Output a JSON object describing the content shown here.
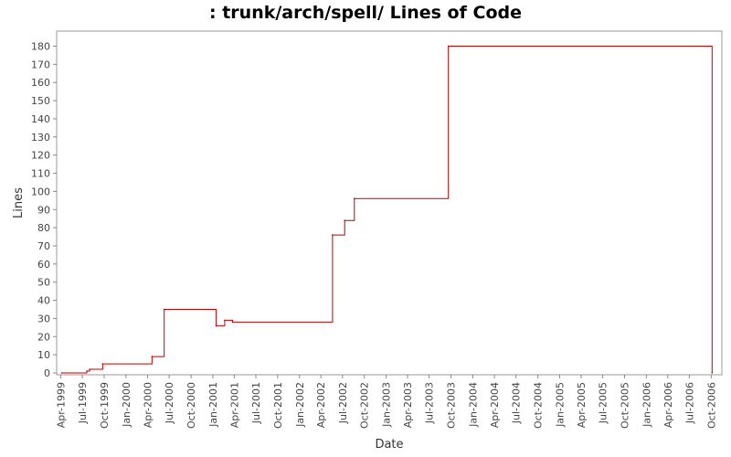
{
  "chart_data": {
    "type": "line",
    "step": true,
    "title": ": trunk/arch/spell/ Lines of Code",
    "xlabel": "Date",
    "ylabel": "Lines",
    "xlim": [
      "1999-03-15",
      "2006-11-15"
    ],
    "ylim": [
      0,
      185
    ],
    "grid": false,
    "legend": "none",
    "color": "#bb0000",
    "y_ticks": [
      0,
      10,
      20,
      30,
      40,
      50,
      60,
      70,
      80,
      90,
      100,
      110,
      120,
      130,
      140,
      150,
      160,
      170,
      180
    ],
    "x_ticks": [
      {
        "date": "1999-04-01",
        "label": "Apr-1999"
      },
      {
        "date": "1999-07-01",
        "label": "Jul-1999"
      },
      {
        "date": "1999-10-01",
        "label": "Oct-1999"
      },
      {
        "date": "2000-01-01",
        "label": "Jan-2000"
      },
      {
        "date": "2000-04-01",
        "label": "Apr-2000"
      },
      {
        "date": "2000-07-01",
        "label": "Jul-2000"
      },
      {
        "date": "2000-10-01",
        "label": "Oct-2000"
      },
      {
        "date": "2001-01-01",
        "label": "Jan-2001"
      },
      {
        "date": "2001-04-01",
        "label": "Apr-2001"
      },
      {
        "date": "2001-07-01",
        "label": "Jul-2001"
      },
      {
        "date": "2001-10-01",
        "label": "Oct-2001"
      },
      {
        "date": "2002-01-01",
        "label": "Jan-2002"
      },
      {
        "date": "2002-04-01",
        "label": "Apr-2002"
      },
      {
        "date": "2002-07-01",
        "label": "Jul-2002"
      },
      {
        "date": "2002-10-01",
        "label": "Oct-2002"
      },
      {
        "date": "2003-01-01",
        "label": "Jan-2003"
      },
      {
        "date": "2003-04-01",
        "label": "Apr-2003"
      },
      {
        "date": "2003-07-01",
        "label": "Jul-2003"
      },
      {
        "date": "2003-10-01",
        "label": "Oct-2003"
      },
      {
        "date": "2004-01-01",
        "label": "Jan-2004"
      },
      {
        "date": "2004-04-01",
        "label": "Apr-2004"
      },
      {
        "date": "2004-07-01",
        "label": "Jul-2004"
      },
      {
        "date": "2004-10-01",
        "label": "Oct-2004"
      },
      {
        "date": "2005-01-01",
        "label": "Jan-2005"
      },
      {
        "date": "2005-04-01",
        "label": "Apr-2005"
      },
      {
        "date": "2005-07-01",
        "label": "Jul-2005"
      },
      {
        "date": "2005-10-01",
        "label": "Oct-2005"
      },
      {
        "date": "2006-01-01",
        "label": "Jan-2006"
      },
      {
        "date": "2006-04-01",
        "label": "Apr-2006"
      },
      {
        "date": "2006-07-01",
        "label": "Jul-2006"
      },
      {
        "date": "2006-10-01",
        "label": "Oct-2006"
      }
    ],
    "points": [
      {
        "x": "1999-04-05",
        "y": 0
      },
      {
        "x": "1999-07-20",
        "y": 1
      },
      {
        "x": "1999-08-01",
        "y": 2
      },
      {
        "x": "1999-09-25",
        "y": 5
      },
      {
        "x": "2000-04-20",
        "y": 9
      },
      {
        "x": "2000-06-10",
        "y": 35
      },
      {
        "x": "2001-01-15",
        "y": 26
      },
      {
        "x": "2001-02-20",
        "y": 29
      },
      {
        "x": "2001-03-25",
        "y": 28
      },
      {
        "x": "2002-05-20",
        "y": 76
      },
      {
        "x": "2002-07-10",
        "y": 84
      },
      {
        "x": "2002-08-20",
        "y": 96
      },
      {
        "x": "2003-09-20",
        "y": 180
      },
      {
        "x": "2006-10-05",
        "y": 0
      }
    ]
  }
}
